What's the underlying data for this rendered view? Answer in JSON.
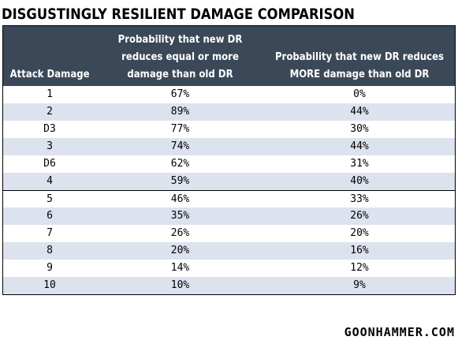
{
  "title": "DISGUSTINGLY RESILIENT DAMAGE COMPARISON",
  "columns": [
    {
      "label": "Attack Damage"
    },
    {
      "label": "Probability that new DR reduces equal or more damage than old DR"
    },
    {
      "label": "Probability that new DR reduces MORE damage than old DR"
    }
  ],
  "rows": [
    {
      "damage": "1",
      "equal_or_more": "67%",
      "more": "0%"
    },
    {
      "damage": "2",
      "equal_or_more": "89%",
      "more": "44%"
    },
    {
      "damage": "D3",
      "equal_or_more": "77%",
      "more": "30%"
    },
    {
      "damage": "3",
      "equal_or_more": "74%",
      "more": "44%"
    },
    {
      "damage": "D6",
      "equal_or_more": "62%",
      "more": "31%"
    },
    {
      "damage": "4",
      "equal_or_more": "59%",
      "more": "40%"
    },
    {
      "damage": "5",
      "equal_or_more": "46%",
      "more": "33%"
    },
    {
      "damage": "6",
      "equal_or_more": "35%",
      "more": "26%"
    },
    {
      "damage": "7",
      "equal_or_more": "26%",
      "more": "20%"
    },
    {
      "damage": "8",
      "equal_or_more": "20%",
      "more": "16%"
    },
    {
      "damage": "9",
      "equal_or_more": "14%",
      "more": "12%"
    },
    {
      "damage": "10",
      "equal_or_more": "10%",
      "more": "9%"
    }
  ],
  "footer": "GOONHAMMER.COM",
  "colors": {
    "header_bg": "#3a4858",
    "shaded_row": "#dde2ef"
  }
}
